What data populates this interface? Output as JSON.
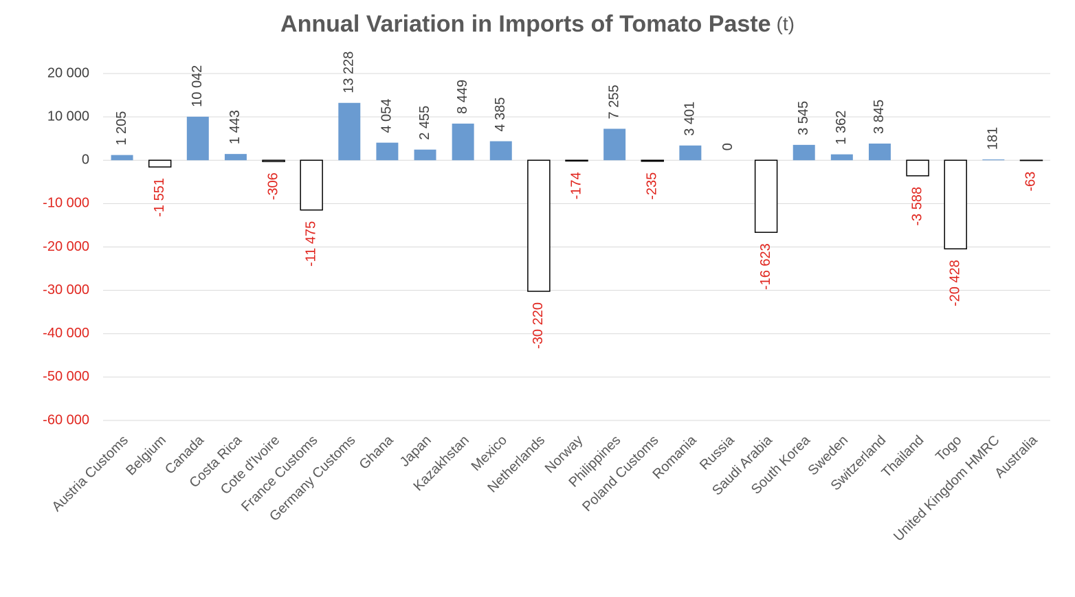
{
  "chart_data": {
    "type": "bar",
    "title": "Annual Variation in Imports of Tomato Paste",
    "title_unit": "(t)",
    "categories": [
      "Austria Customs",
      "Belgium",
      "Canada",
      "Costa Rica",
      "Cote d'Ivoire",
      "France Customs",
      "Germany Customs",
      "Ghana",
      "Japan",
      "Kazakhstan",
      "Mexico",
      "Netherlands",
      "Norway",
      "Philippines",
      "Poland Customs",
      "Romania",
      "Russia",
      "Saudi Arabia",
      "South Korea",
      "Sweden",
      "Switzerland",
      "Thailand",
      "Togo",
      "United Kingdom HMRC",
      "Australia"
    ],
    "values": [
      1205,
      -1551,
      10042,
      1443,
      -306,
      -11475,
      13228,
      4054,
      2455,
      8449,
      4385,
      -30220,
      -174,
      7255,
      -235,
      3401,
      0,
      -16623,
      3545,
      1362,
      3845,
      -3588,
      -20428,
      181,
      -63
    ],
    "value_labels": [
      "1 205",
      "-1 551",
      "10 042",
      "1 443",
      "-306",
      "-11 475",
      "13 228",
      "4 054",
      "2 455",
      "8 449",
      "4 385",
      "-30 220",
      "-174",
      "7 255",
      "-235",
      "3 401",
      "0",
      "-16 623",
      "3 545",
      "1 362",
      "3 845",
      "-3 588",
      "-20 428",
      "181",
      "-63"
    ],
    "color": "#6a9bd1",
    "negative_fill": "#ffffff",
    "negative_stroke": "#000000",
    "label_color": "#404040",
    "negative_label_color": "#e0261f",
    "ylim": [
      -60000,
      20000
    ],
    "yticks": [
      {
        "value": -60000,
        "label": "-60 000"
      },
      {
        "value": -50000,
        "label": "-50 000"
      },
      {
        "value": -40000,
        "label": "-40 000"
      },
      {
        "value": -30000,
        "label": "-30 000"
      },
      {
        "value": -20000,
        "label": "-20 000"
      },
      {
        "value": -10000,
        "label": "-10 000"
      },
      0,
      {
        "value": 10000,
        "label": "10 000"
      },
      {
        "value": 20000,
        "label": "20 000"
      }
    ],
    "grid": true
  }
}
